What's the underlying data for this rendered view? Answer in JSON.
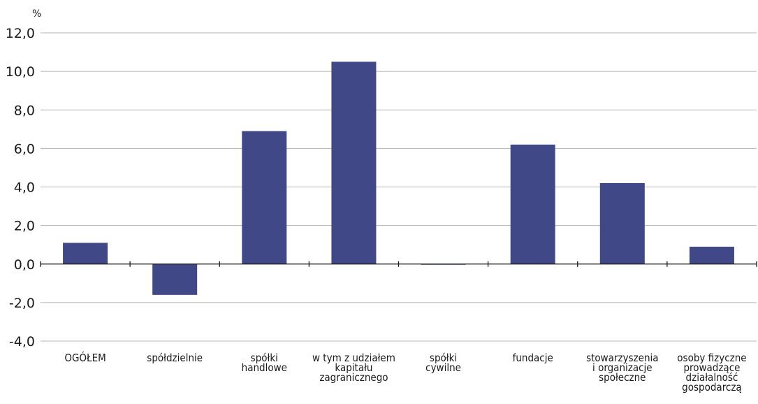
{
  "chart_data": {
    "type": "bar",
    "unit_label": "%",
    "categories": [
      [
        "OGÓŁEM"
      ],
      [
        "spółdzielnie"
      ],
      [
        "spółki",
        "handlowe"
      ],
      [
        "w tym z udziałem",
        "kapitału",
        "zagranicznego"
      ],
      [
        "spółki",
        "cywilne"
      ],
      [
        "fundacje"
      ],
      [
        "stowarzyszenia",
        "i organizacje",
        "społeczne"
      ],
      [
        "osoby fizyczne",
        "prowadzące",
        "działalność",
        "gospodarczą"
      ]
    ],
    "values": [
      1.1,
      -1.6,
      6.9,
      10.5,
      0.0,
      6.2,
      4.2,
      0.9
    ],
    "ylim": [
      -4,
      12
    ],
    "yticks": [
      "-4,0",
      "-2,0",
      "0,0",
      "2,0",
      "4,0",
      "6,0",
      "8,0",
      "10,0",
      "12,0"
    ],
    "ytick_values": [
      -4,
      -2,
      0,
      2,
      4,
      6,
      8,
      10,
      12
    ],
    "grid": true,
    "bar_color": "#414887",
    "grid_color": "#b5b5b5"
  }
}
